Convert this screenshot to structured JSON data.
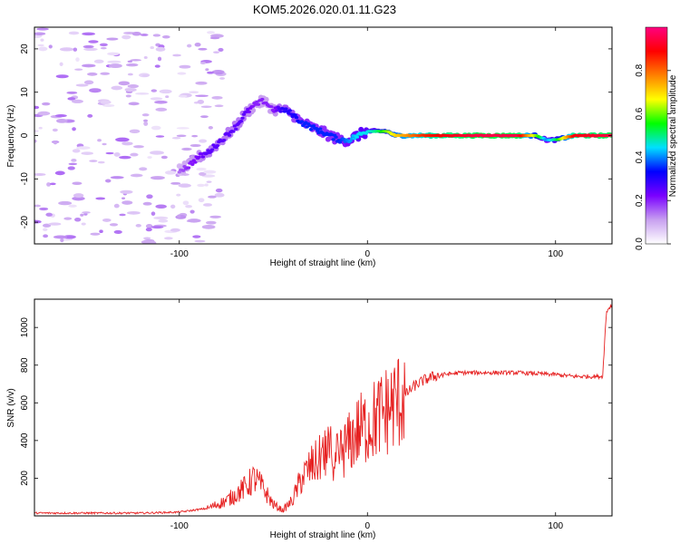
{
  "title": "KOM5.2026.020.01.11.G23",
  "chart_data": [
    {
      "type": "heatmap",
      "name": "spectrogram",
      "xlabel": "Height of straight line (km)",
      "ylabel": "Frequency (Hz)",
      "xlim": [
        -177,
        130
      ],
      "ylim": [
        -25,
        25
      ],
      "xticks": [
        -100,
        0,
        100
      ],
      "yticks": [
        -20,
        -10,
        0,
        10,
        20
      ],
      "colorbar": {
        "label": "Normalized spectral amplitude",
        "range": [
          0,
          1
        ],
        "ticks": [
          "0.0",
          "0.2",
          "0.4",
          "0.6",
          "0.8"
        ],
        "tick_values": [
          0.0,
          0.2,
          0.4,
          0.6,
          0.8
        ],
        "colors": [
          "#ffffff",
          "#c8a0f0",
          "#7a00ff",
          "#0000ff",
          "#00e0ff",
          "#00ff00",
          "#ffff00",
          "#ff8000",
          "#ff0000",
          "#ff0080"
        ]
      },
      "ridge": {
        "x": [
          -100,
          -95,
          -90,
          -85,
          -80,
          -75,
          -70,
          -65,
          -60,
          -55,
          -50,
          -45,
          -40,
          -35,
          -30,
          -25,
          -20,
          -15,
          -10,
          -5,
          0,
          5,
          10,
          15,
          20,
          30,
          40,
          60,
          80,
          90,
          95,
          100,
          110,
          130
        ],
        "freq": [
          -8,
          -7,
          -5,
          -4,
          -2,
          0,
          2,
          5,
          7,
          8,
          6,
          6,
          5,
          3,
          2,
          1,
          0,
          -1,
          -1,
          0,
          1,
          1,
          1,
          0,
          0,
          0,
          0,
          0,
          0,
          0,
          -1,
          -1,
          0,
          0
        ],
        "amp": [
          0.15,
          0.2,
          0.22,
          0.25,
          0.25,
          0.25,
          0.25,
          0.25,
          0.2,
          0.2,
          0.2,
          0.3,
          0.3,
          0.35,
          0.35,
          0.35,
          0.35,
          0.35,
          0.4,
          0.45,
          0.45,
          0.5,
          0.6,
          0.7,
          0.75,
          0.85,
          0.9,
          0.95,
          0.95,
          0.6,
          0.4,
          0.5,
          0.9,
          0.95
        ]
      }
    },
    {
      "type": "line",
      "name": "snr",
      "xlabel": "Height of straight line (km)",
      "ylabel": "SNR (v/v)",
      "xlim": [
        -177,
        130
      ],
      "ylim": [
        0,
        1150
      ],
      "xticks": [
        -100,
        0,
        100
      ],
      "yticks": [
        200,
        400,
        600,
        800,
        1000
      ],
      "color": "#e62020",
      "series": {
        "x": [
          -177,
          -150,
          -120,
          -100,
          -85,
          -75,
          -65,
          -60,
          -55,
          -50,
          -45,
          -40,
          -35,
          -30,
          -25,
          -20,
          -15,
          -10,
          -5,
          0,
          5,
          10,
          15,
          20,
          25,
          30,
          35,
          40,
          50,
          60,
          80,
          100,
          110,
          125,
          127,
          128,
          130
        ],
        "y": [
          15,
          15,
          15,
          20,
          40,
          80,
          150,
          200,
          140,
          60,
          30,
          80,
          200,
          260,
          300,
          340,
          330,
          380,
          450,
          480,
          520,
          560,
          600,
          640,
          690,
          720,
          740,
          750,
          760,
          760,
          760,
          750,
          740,
          740,
          1080,
          1100,
          1120
        ]
      }
    }
  ]
}
